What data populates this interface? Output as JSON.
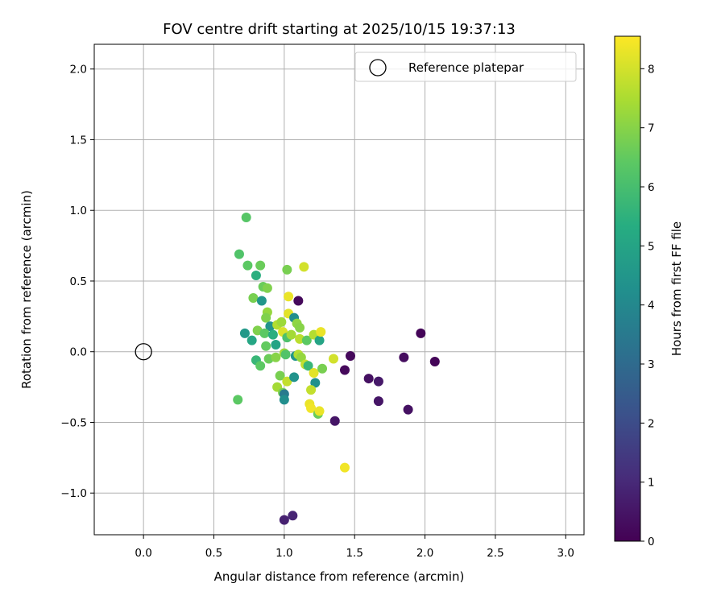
{
  "chart_data": {
    "type": "scatter",
    "title": "FOV centre drift starting at 2025/10/15 19:37:13",
    "xlabel": "Angular distance from reference (arcmin)",
    "ylabel": "Rotation from reference (arcmin)",
    "xlim": [
      -0.35,
      3.13
    ],
    "ylim": [
      -1.295,
      2.175
    ],
    "xticks": [
      0.0,
      0.5,
      1.0,
      1.5,
      2.0,
      2.5,
      3.0
    ],
    "xtick_labels": [
      "0.0",
      "0.5",
      "1.0",
      "1.5",
      "2.0",
      "2.5",
      "3.0"
    ],
    "yticks": [
      -1.0,
      -0.5,
      0.0,
      0.5,
      1.0,
      1.5,
      2.0
    ],
    "ytick_labels": [
      "−1.0",
      "−0.5",
      "0.0",
      "0.5",
      "1.0",
      "1.5",
      "2.0"
    ],
    "grid": true,
    "legend": {
      "position": "top-right",
      "label": "Reference platepar"
    },
    "reference_point": {
      "x": 0.0,
      "y": 0.0
    },
    "colorbar": {
      "label": "Hours from first FF file",
      "min": 0,
      "max": 8.55,
      "ticks": [
        0,
        1,
        2,
        3,
        4,
        5,
        6,
        7,
        8
      ],
      "tick_labels": [
        "0",
        "1",
        "2",
        "3",
        "4",
        "5",
        "6",
        "7",
        "8"
      ],
      "colormap": "viridis"
    },
    "points": [
      {
        "x": 0.73,
        "y": 0.95,
        "t": 6.3
      },
      {
        "x": 0.68,
        "y": 0.69,
        "t": 6.2
      },
      {
        "x": 0.74,
        "y": 0.61,
        "t": 6.4
      },
      {
        "x": 0.83,
        "y": 0.61,
        "t": 6.6
      },
      {
        "x": 0.8,
        "y": 0.54,
        "t": 5.4
      },
      {
        "x": 1.02,
        "y": 0.58,
        "t": 6.8
      },
      {
        "x": 1.14,
        "y": 0.6,
        "t": 8.0
      },
      {
        "x": 0.85,
        "y": 0.46,
        "t": 6.6
      },
      {
        "x": 0.88,
        "y": 0.45,
        "t": 6.9
      },
      {
        "x": 0.78,
        "y": 0.38,
        "t": 6.8
      },
      {
        "x": 0.84,
        "y": 0.36,
        "t": 4.5
      },
      {
        "x": 1.03,
        "y": 0.39,
        "t": 8.3
      },
      {
        "x": 1.1,
        "y": 0.36,
        "t": 0.2
      },
      {
        "x": 0.88,
        "y": 0.28,
        "t": 7.2
      },
      {
        "x": 0.87,
        "y": 0.24,
        "t": 6.9
      },
      {
        "x": 1.03,
        "y": 0.27,
        "t": 8.2
      },
      {
        "x": 1.07,
        "y": 0.24,
        "t": 4.2
      },
      {
        "x": 1.09,
        "y": 0.2,
        "t": 7.1
      },
      {
        "x": 0.9,
        "y": 0.18,
        "t": 4.4
      },
      {
        "x": 0.95,
        "y": 0.19,
        "t": 7.6
      },
      {
        "x": 0.98,
        "y": 0.21,
        "t": 7.3
      },
      {
        "x": 0.81,
        "y": 0.15,
        "t": 6.9
      },
      {
        "x": 0.86,
        "y": 0.13,
        "t": 6.4
      },
      {
        "x": 0.92,
        "y": 0.12,
        "t": 5.4
      },
      {
        "x": 0.99,
        "y": 0.14,
        "t": 8.1
      },
      {
        "x": 1.02,
        "y": 0.1,
        "t": 6.1
      },
      {
        "x": 1.05,
        "y": 0.12,
        "t": 7.4
      },
      {
        "x": 1.11,
        "y": 0.17,
        "t": 7.0
      },
      {
        "x": 1.11,
        "y": 0.09,
        "t": 7.7
      },
      {
        "x": 0.72,
        "y": 0.13,
        "t": 4.6
      },
      {
        "x": 0.77,
        "y": 0.08,
        "t": 5.1
      },
      {
        "x": 0.87,
        "y": 0.04,
        "t": 6.5
      },
      {
        "x": 0.94,
        "y": 0.05,
        "t": 5.0
      },
      {
        "x": 1.16,
        "y": 0.08,
        "t": 6.4
      },
      {
        "x": 1.21,
        "y": 0.12,
        "t": 7.6
      },
      {
        "x": 1.25,
        "y": 0.08,
        "t": 5.0
      },
      {
        "x": 1.26,
        "y": 0.14,
        "t": 8.3
      },
      {
        "x": 1.97,
        "y": 0.13,
        "t": 0.1
      },
      {
        "x": 0.8,
        "y": -0.06,
        "t": 5.7
      },
      {
        "x": 0.83,
        "y": -0.1,
        "t": 6.4
      },
      {
        "x": 0.89,
        "y": -0.05,
        "t": 6.6
      },
      {
        "x": 0.94,
        "y": -0.04,
        "t": 7.0
      },
      {
        "x": 1.0,
        "y": -0.01,
        "t": 7.3
      },
      {
        "x": 1.01,
        "y": -0.02,
        "t": 6.2
      },
      {
        "x": 1.08,
        "y": -0.03,
        "t": 4.5
      },
      {
        "x": 1.1,
        "y": -0.02,
        "t": 7.6
      },
      {
        "x": 1.12,
        "y": -0.04,
        "t": 7.2
      },
      {
        "x": 1.15,
        "y": -0.09,
        "t": 7.8
      },
      {
        "x": 1.17,
        "y": -0.1,
        "t": 5.7
      },
      {
        "x": 1.21,
        "y": -0.15,
        "t": 8.2
      },
      {
        "x": 1.27,
        "y": -0.12,
        "t": 6.8
      },
      {
        "x": 1.35,
        "y": -0.05,
        "t": 8.0
      },
      {
        "x": 1.43,
        "y": -0.13,
        "t": 0.2
      },
      {
        "x": 1.47,
        "y": -0.03,
        "t": 0.2
      },
      {
        "x": 1.6,
        "y": -0.19,
        "t": 0.4
      },
      {
        "x": 1.67,
        "y": -0.21,
        "t": 0.6
      },
      {
        "x": 1.85,
        "y": -0.04,
        "t": 0.3
      },
      {
        "x": 2.07,
        "y": -0.07,
        "t": 0.1
      },
      {
        "x": 0.97,
        "y": -0.17,
        "t": 6.8
      },
      {
        "x": 1.02,
        "y": -0.21,
        "t": 7.8
      },
      {
        "x": 1.07,
        "y": -0.18,
        "t": 4.4
      },
      {
        "x": 1.22,
        "y": -0.22,
        "t": 4.3
      },
      {
        "x": 0.95,
        "y": -0.25,
        "t": 7.4
      },
      {
        "x": 0.99,
        "y": -0.29,
        "t": 6.8
      },
      {
        "x": 1.0,
        "y": -0.3,
        "t": 3.5
      },
      {
        "x": 1.0,
        "y": -0.34,
        "t": 4.2
      },
      {
        "x": 1.19,
        "y": -0.27,
        "t": 7.8
      },
      {
        "x": 1.18,
        "y": -0.37,
        "t": 8.3
      },
      {
        "x": 1.19,
        "y": -0.4,
        "t": 8.4
      },
      {
        "x": 1.24,
        "y": -0.44,
        "t": 6.6
      },
      {
        "x": 1.25,
        "y": -0.42,
        "t": 8.3
      },
      {
        "x": 0.67,
        "y": -0.34,
        "t": 6.4
      },
      {
        "x": 1.36,
        "y": -0.49,
        "t": 0.5
      },
      {
        "x": 1.67,
        "y": -0.35,
        "t": 0.5
      },
      {
        "x": 1.88,
        "y": -0.41,
        "t": 0.4
      },
      {
        "x": 1.43,
        "y": -0.82,
        "t": 8.4
      },
      {
        "x": 1.0,
        "y": -1.19,
        "t": 0.8
      },
      {
        "x": 1.06,
        "y": -1.16,
        "t": 0.9
      }
    ]
  }
}
